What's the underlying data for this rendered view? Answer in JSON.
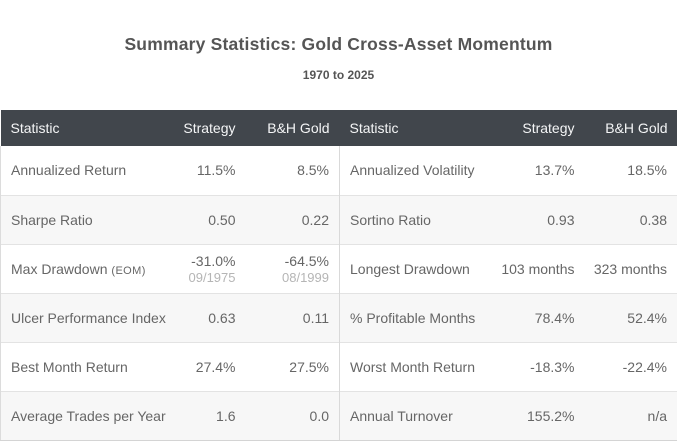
{
  "title": "Summary Statistics: Gold Cross-Asset Momentum",
  "subtitle": "1970 to 2025",
  "header": {
    "statistic": "Statistic",
    "strategy": "Strategy",
    "bh_gold": "B&H Gold"
  },
  "left_rows": [
    {
      "statistic": "Annualized Return",
      "strategy": "11.5%",
      "bh_gold": "8.5%"
    },
    {
      "statistic": "Sharpe Ratio",
      "strategy": "0.50",
      "bh_gold": "0.22"
    },
    {
      "statistic": "Max Drawdown",
      "statistic_suffix": "(EOM)",
      "strategy": "-31.0%",
      "strategy_sub": "09/1975",
      "bh_gold": "-64.5%",
      "bh_gold_sub": "08/1999"
    },
    {
      "statistic": "Ulcer Performance Index",
      "strategy": "0.63",
      "bh_gold": "0.11"
    },
    {
      "statistic": "Best Month Return",
      "strategy": "27.4%",
      "bh_gold": "27.5%"
    },
    {
      "statistic": "Average Trades per Year",
      "strategy": "1.6",
      "bh_gold": "0.0"
    }
  ],
  "right_rows": [
    {
      "statistic": "Annualized Volatility",
      "strategy": "13.7%",
      "bh_gold": "18.5%"
    },
    {
      "statistic": "Sortino Ratio",
      "strategy": "0.93",
      "bh_gold": "0.38"
    },
    {
      "statistic": "Longest Drawdown",
      "strategy": "103 months",
      "bh_gold": "323 months"
    },
    {
      "statistic": "% Profitable Months",
      "strategy": "78.4%",
      "bh_gold": "52.4%"
    },
    {
      "statistic": "Worst Month Return",
      "strategy": "-18.3%",
      "bh_gold": "-22.4%"
    },
    {
      "statistic": "Annual Turnover",
      "strategy": "155.2%",
      "bh_gold": "n/a"
    }
  ],
  "colors": {
    "header_bg": "#41464C",
    "header_text": "#F4F5F6",
    "cell_text": "#666666",
    "sub_text": "#B5B5B5",
    "alt_row_bg": "#F7F7F7",
    "border": "#DCDCDC",
    "title_text": "#555555"
  },
  "chart_data": {
    "type": "table",
    "title": "Summary Statistics: Gold Cross-Asset Momentum",
    "subtitle": "1970 to 2025",
    "columns": [
      "Statistic",
      "Strategy",
      "B&H Gold",
      "Statistic",
      "Strategy",
      "B&H Gold"
    ],
    "rows": [
      [
        "Annualized Return",
        "11.5%",
        "8.5%",
        "Annualized Volatility",
        "13.7%",
        "18.5%"
      ],
      [
        "Sharpe Ratio",
        "0.50",
        "0.22",
        "Sortino Ratio",
        "0.93",
        "0.38"
      ],
      [
        "Max Drawdown (EOM)",
        "-31.0% (09/1975)",
        "-64.5% (08/1999)",
        "Longest Drawdown",
        "103 months",
        "323 months"
      ],
      [
        "Ulcer Performance Index",
        "0.63",
        "0.11",
        "% Profitable Months",
        "78.4%",
        "52.4%"
      ],
      [
        "Best Month Return",
        "27.4%",
        "27.5%",
        "Worst Month Return",
        "-18.3%",
        "-22.4%"
      ],
      [
        "Average Trades per Year",
        "1.6",
        "0.0",
        "Annual Turnover",
        "155.2%",
        "n/a"
      ]
    ]
  }
}
